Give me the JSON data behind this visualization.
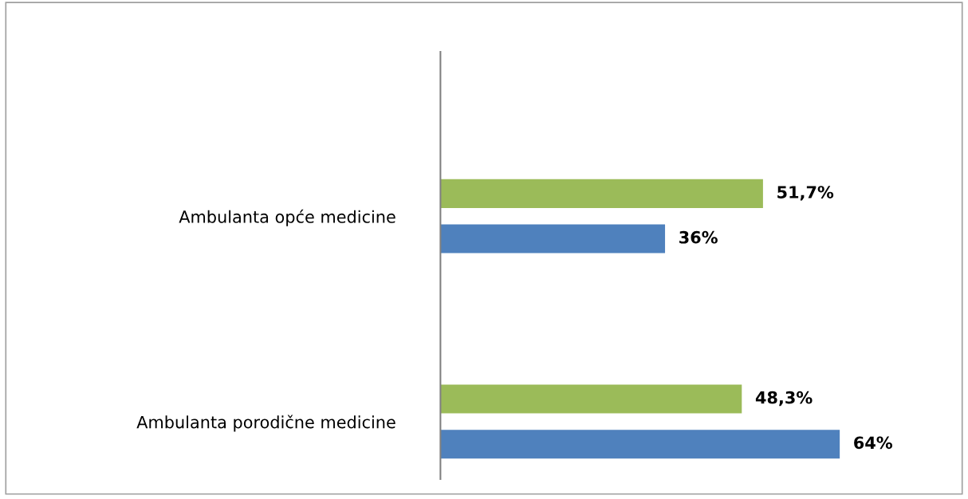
{
  "chart_data": {
    "type": "bar",
    "orientation": "horizontal",
    "categories": [
      "Ambulanta opće medicine",
      "Ambulanta porodične medicine"
    ],
    "series": [
      {
        "color": "#9bbb59",
        "values": [
          51.7,
          48.3
        ],
        "value_labels": [
          "51,7%",
          "48,3%"
        ]
      },
      {
        "color": "#4f81bd",
        "values": [
          36,
          64
        ],
        "value_labels": [
          "36%",
          "64%"
        ]
      }
    ],
    "grid": false,
    "legend": false
  }
}
